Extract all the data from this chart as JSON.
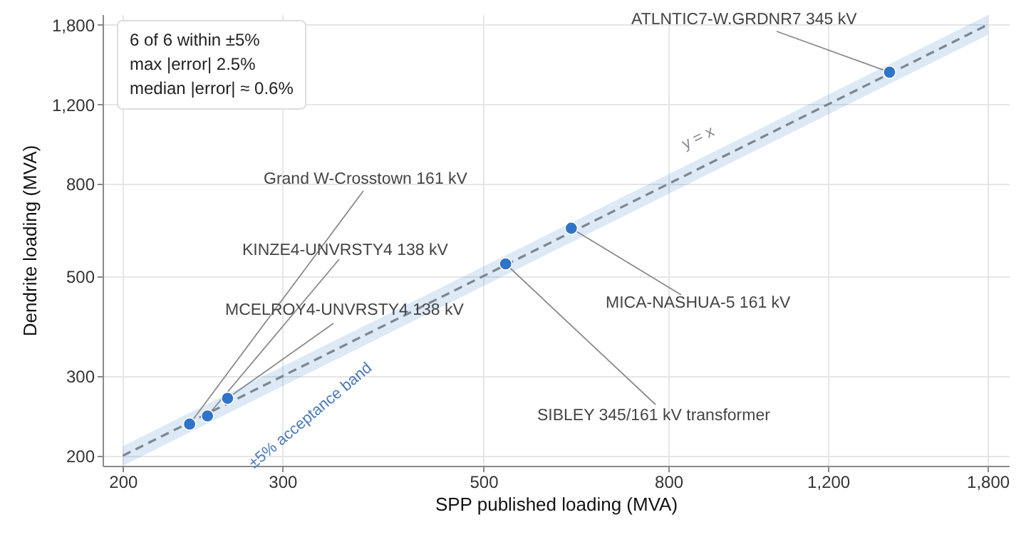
{
  "chart_data": {
    "type": "scatter",
    "xlabel": "SPP published loading (MVA)",
    "ylabel": "Dendrite loading (MVA)",
    "log": "xy",
    "grid": true,
    "xlim": [
      190,
      1900
    ],
    "ylim": [
      190,
      1900
    ],
    "xticks": [
      200,
      300,
      500,
      800,
      {
        "value": 1200,
        "label": "1,200"
      },
      {
        "value": 1800,
        "label": "1,800"
      }
    ],
    "yticks": [
      200,
      300,
      500,
      800,
      {
        "value": 1200,
        "label": "1,200"
      },
      {
        "value": 1800,
        "label": "1,800"
      }
    ],
    "series": [
      {
        "marker": "circle",
        "color": "#2f74c8",
        "x": [
          237,
          248,
          261,
          529,
          625,
          1403
        ],
        "values": [
          235,
          245,
          268,
          532,
          638,
          1414
        ]
      },
      {
        "type": "line",
        "name": "y = x",
        "color": "#7a8694",
        "line_style": "dashed",
        "x": [
          200,
          1800
        ],
        "values": [
          200,
          1800
        ],
        "lower": [
          190,
          1710
        ],
        "upper": [
          210,
          1890
        ]
      }
    ],
    "annotations": [
      {
        "text": "ATLNTIC7-W.GRDNR7 345 kV",
        "x": 1403,
        "y": 1414
      },
      {
        "text": "MICA-NASHUA-5 161 kV",
        "x": 625,
        "y": 638
      },
      {
        "text": "SIBLEY 345/161 kV transformer",
        "x": 529,
        "y": 532
      },
      {
        "text": "Grand W-Crosstown 161 kV",
        "x": 237,
        "y": 235
      },
      {
        "text": "KINZE4-UNVRSTY4 138 kV",
        "x": 248,
        "y": 245
      },
      {
        "text": "MCELROY4-UNVRSTY4 138 kV",
        "x": 261,
        "y": 268
      },
      "±5% acceptance band",
      "6 of 6 within ±5%",
      "max |error| 2.5%",
      "median |error| ≈ 0.6%"
    ]
  }
}
